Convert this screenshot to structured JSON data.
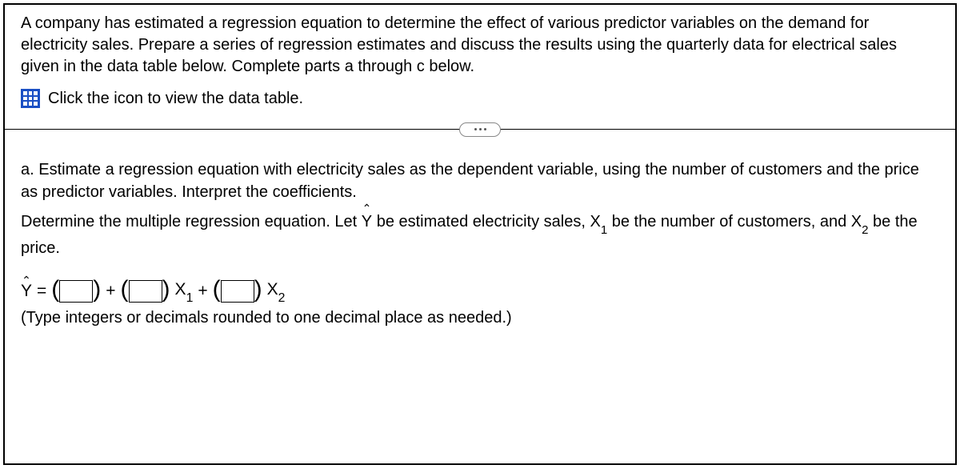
{
  "intro": "A company has estimated a regression equation to determine the effect of various predictor variables on the demand for electricity sales. Prepare a series of regression estimates and discuss the results using the quarterly data for electrical sales given in the data table below. Complete parts a through c below.",
  "icon_label": "Click the icon to view the data table.",
  "part_a_q1": "a. Estimate a regression equation with electricity sales as the dependent variable, using the number of customers and the price as predictor variables. Interpret the coefficients.",
  "part_a_q2a": "Determine the multiple regression equation. Let ",
  "part_a_q2b": " be estimated electricity sales, X",
  "part_a_q2b_sub": "1",
  "part_a_q2c": " be the number of customers, and X",
  "part_a_q2c_sub": "2",
  "part_a_q2d": " be the price.",
  "eq": {
    "yhat": "Y",
    "equals": "=",
    "plus": "+",
    "x1": "X",
    "x1_sub": "1",
    "x2": "X",
    "x2_sub": "2",
    "box1": "",
    "box2": "",
    "box3": ""
  },
  "hint": "(Type integers or decimals rounded to one decimal place as needed.)"
}
